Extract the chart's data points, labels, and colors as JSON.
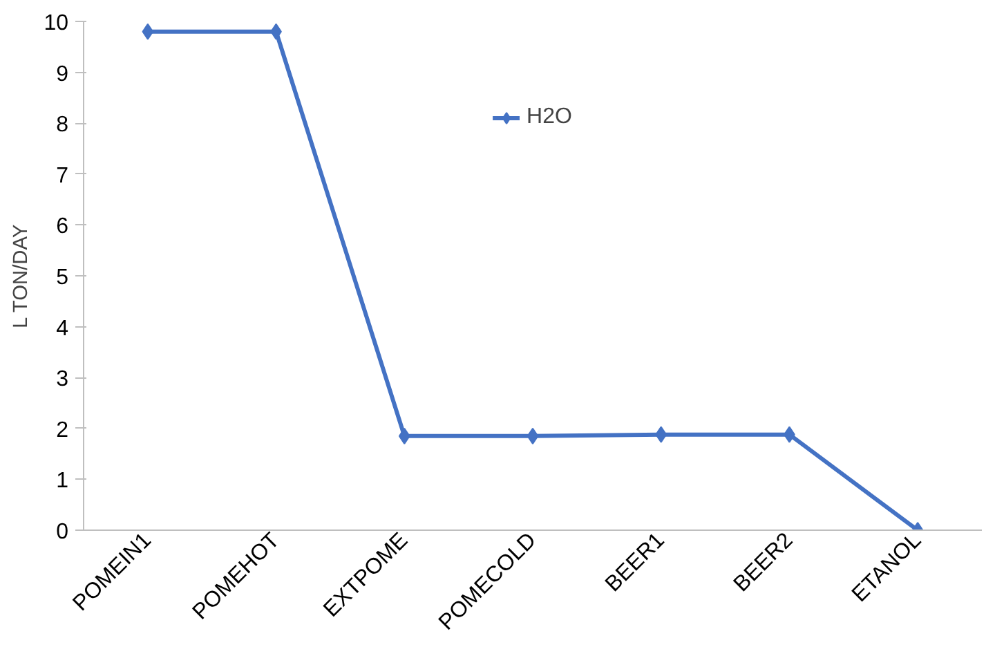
{
  "chart_data": {
    "type": "line",
    "ylabel": "L TON/DAY",
    "categories": [
      "POMEIN1",
      "POMEHOT",
      "EXTPOME",
      "POMECOLD",
      "BEER1",
      "BEER2",
      "ETANOL"
    ],
    "series": [
      {
        "name": "H2O",
        "color": "#4472c4",
        "values": [
          9.8,
          9.8,
          1.85,
          1.85,
          1.88,
          1.88,
          0
        ]
      }
    ],
    "ylim": [
      0,
      10
    ],
    "yticks": [
      0,
      1,
      2,
      3,
      4,
      5,
      6,
      7,
      8,
      9,
      10
    ],
    "grid": false,
    "legend": "top",
    "marker": "diamond",
    "line_style": "solid"
  }
}
